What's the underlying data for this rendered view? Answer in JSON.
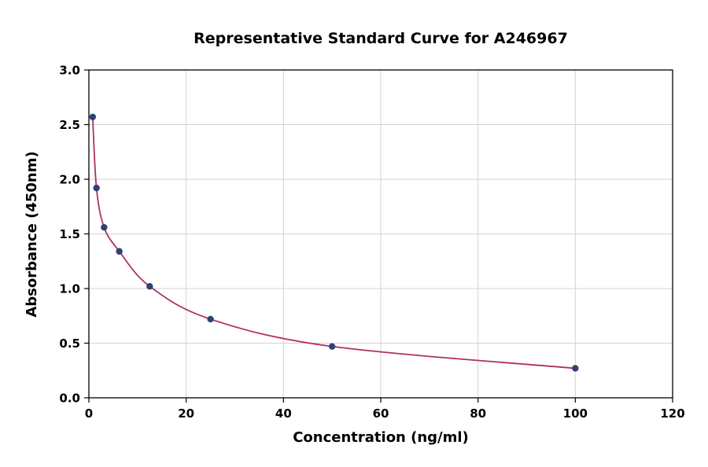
{
  "chart_data": {
    "type": "line",
    "title": "Representative Standard Curve for A246967",
    "xlabel": "Concentration (ng/ml)",
    "ylabel": "Absorbance (450nm)",
    "xlim": [
      0,
      120
    ],
    "ylim": [
      0,
      3.0
    ],
    "x_ticks": [
      0,
      20,
      40,
      60,
      80,
      100,
      120
    ],
    "x_tick_labels": [
      "0",
      "20",
      "40",
      "60",
      "80",
      "100",
      "120"
    ],
    "y_ticks": [
      0,
      0.5,
      1.0,
      1.5,
      2.0,
      2.5,
      3.0
    ],
    "y_tick_labels": [
      "0.0",
      "0.5",
      "1.0",
      "1.5",
      "2.0",
      "2.5",
      "3.0"
    ],
    "grid": true,
    "legend": "none",
    "series": [
      {
        "name": "standard-curve",
        "points": [
          {
            "x": 0.78,
            "y": 2.57
          },
          {
            "x": 1.56,
            "y": 1.92
          },
          {
            "x": 3.13,
            "y": 1.56
          },
          {
            "x": 6.25,
            "y": 1.34
          },
          {
            "x": 12.5,
            "y": 1.02
          },
          {
            "x": 25,
            "y": 0.72
          },
          {
            "x": 50,
            "y": 0.47
          },
          {
            "x": 100,
            "y": 0.27
          }
        ]
      }
    ],
    "colors": {
      "line": "#b03060",
      "marker": "#2e4272",
      "grid": "#d3d3d3",
      "border": "#000000",
      "background": "#ffffff"
    }
  }
}
